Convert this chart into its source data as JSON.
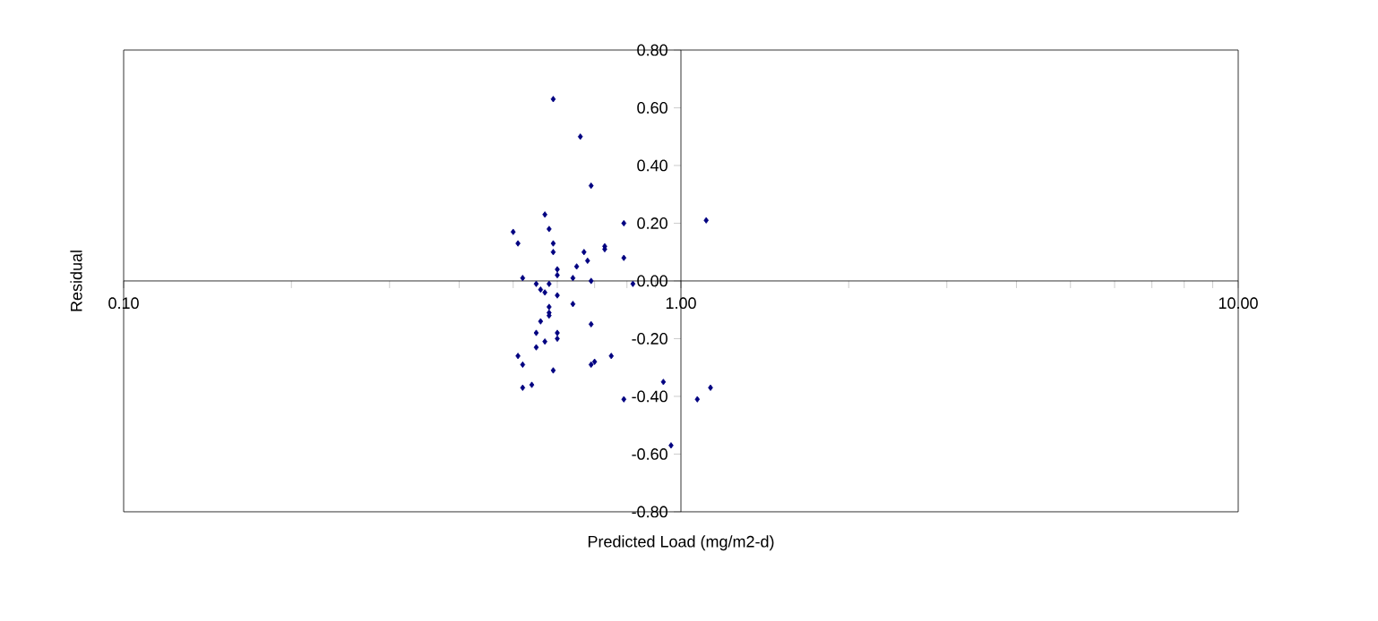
{
  "chart_data": {
    "type": "scatter",
    "xlabel": "Predicted Load (mg/m2-d)",
    "ylabel": "Residual",
    "log": "x",
    "marker": "diamond",
    "grid": false,
    "xlim": [
      0.1,
      10
    ],
    "xticks": [
      {
        "value": 0.1,
        "label": "0.10"
      },
      {
        "value": 1,
        "label": "1.00"
      },
      {
        "value": 10,
        "label": "10.00"
      }
    ],
    "ylim": [
      -0.8,
      0.8
    ],
    "yticks": [
      {
        "value": -0.8,
        "label": "-0.80"
      },
      {
        "value": -0.6,
        "label": "-0.60"
      },
      {
        "value": -0.4,
        "label": "-0.40"
      },
      {
        "value": -0.2,
        "label": "-0.20"
      },
      {
        "value": 0,
        "label": "0.00"
      },
      {
        "value": 0.2,
        "label": "0.20"
      },
      {
        "value": 0.4,
        "label": "0.40"
      },
      {
        "value": 0.6,
        "label": "0.60"
      },
      {
        "value": 0.8,
        "label": "0.80"
      }
    ],
    "series": [
      {
        "color": "#000080",
        "x": [
          0.59,
          0.66,
          0.69,
          0.57,
          0.5,
          0.51,
          0.58,
          0.59,
          0.59,
          0.73,
          0.73,
          0.67,
          0.68,
          0.65,
          0.79,
          0.79,
          0.6,
          0.6,
          0.64,
          0.69,
          0.52,
          1.11,
          0.55,
          0.56,
          0.57,
          0.58,
          0.6,
          0.64,
          0.82,
          0.58,
          0.58,
          0.58,
          0.56,
          0.55,
          0.55,
          0.57,
          0.6,
          0.6,
          0.69,
          0.51,
          0.52,
          0.59,
          0.7,
          0.69,
          0.75,
          0.52,
          0.54,
          0.79,
          0.93,
          0.96,
          1.07,
          1.13
        ],
        "values": [
          0.63,
          0.5,
          0.33,
          0.23,
          0.17,
          0.13,
          0.18,
          0.13,
          0.1,
          0.12,
          0.11,
          0.1,
          0.07,
          0.05,
          0.08,
          0.2,
          0.04,
          0.02,
          0.01,
          0.0,
          0.01,
          0.21,
          -0.01,
          -0.03,
          -0.04,
          -0.01,
          -0.05,
          -0.08,
          -0.01,
          -0.09,
          -0.11,
          -0.12,
          -0.14,
          -0.18,
          -0.23,
          -0.21,
          -0.18,
          -0.2,
          -0.15,
          -0.26,
          -0.29,
          -0.31,
          -0.28,
          -0.29,
          -0.26,
          -0.37,
          -0.36,
          -0.41,
          -0.35,
          -0.57,
          -0.41,
          -0.37
        ]
      }
    ]
  }
}
